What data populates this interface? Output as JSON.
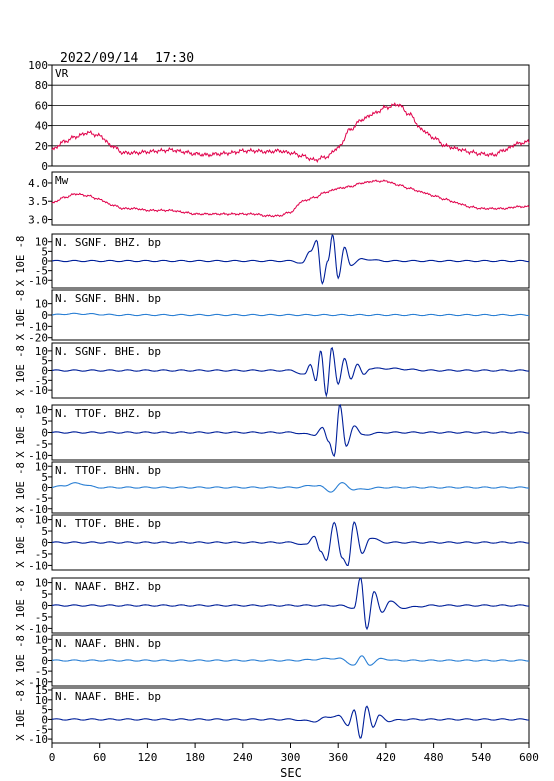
{
  "header": {
    "date": "2022/09/14",
    "time": "17:30"
  },
  "xaxis": {
    "label": "SEC",
    "ticks": [
      "0",
      "60",
      "120",
      "180",
      "240",
      "300",
      "360",
      "420",
      "480",
      "540",
      "600"
    ]
  },
  "colors": {
    "vr": "#e0004a",
    "wave_dark": "#00209a",
    "wave_light": "#2a7fd4",
    "axes": "#000000",
    "grid": "#000000"
  },
  "chart_data": [
    {
      "type": "line",
      "label": "VR",
      "ylim": [
        0,
        100
      ],
      "yticks": [
        "100",
        "80",
        "60",
        "40",
        "20",
        "0"
      ],
      "grid": true,
      "x": [
        0,
        15,
        30,
        45,
        60,
        75,
        90,
        105,
        120,
        135,
        150,
        165,
        180,
        195,
        210,
        225,
        240,
        255,
        270,
        285,
        300,
        315,
        330,
        345,
        360,
        375,
        390,
        405,
        420,
        435,
        450,
        465,
        480,
        495,
        510,
        525,
        540,
        555,
        570,
        585,
        600
      ],
      "values": [
        16,
        24,
        29,
        33,
        30,
        20,
        13,
        13,
        14,
        15,
        16,
        14,
        12,
        11,
        12,
        13,
        15,
        15,
        14,
        15,
        13,
        10,
        6,
        9,
        18,
        36,
        46,
        52,
        58,
        61,
        51,
        36,
        28,
        20,
        17,
        14,
        12,
        11,
        16,
        22,
        24
      ]
    },
    {
      "type": "line",
      "label": "Mw",
      "ylim": [
        2.85,
        4.3
      ],
      "yticks": [
        "4.0",
        "3.5",
        "3.0"
      ],
      "x": [
        0,
        15,
        30,
        45,
        60,
        75,
        90,
        105,
        120,
        135,
        150,
        165,
        180,
        195,
        210,
        225,
        240,
        255,
        270,
        285,
        300,
        315,
        330,
        345,
        360,
        375,
        390,
        405,
        420,
        435,
        450,
        465,
        480,
        495,
        510,
        525,
        540,
        555,
        570,
        585,
        600
      ],
      "values": [
        3.45,
        3.6,
        3.7,
        3.65,
        3.55,
        3.4,
        3.3,
        3.3,
        3.25,
        3.25,
        3.25,
        3.2,
        3.15,
        3.15,
        3.15,
        3.15,
        3.15,
        3.15,
        3.1,
        3.1,
        3.2,
        3.5,
        3.6,
        3.75,
        3.85,
        3.9,
        4.0,
        4.05,
        4.05,
        3.95,
        3.85,
        3.75,
        3.65,
        3.55,
        3.45,
        3.35,
        3.3,
        3.3,
        3.3,
        3.35,
        3.35
      ]
    },
    {
      "type": "line",
      "label": "N. SGNF. BHZ. bp",
      "unit": "X 10E -8",
      "yticks": [
        "10",
        "5",
        "0",
        "-5",
        "-10"
      ],
      "ylim": [
        -14,
        14
      ],
      "color": "dark",
      "x": [
        0,
        60,
        120,
        180,
        240,
        300,
        315,
        325,
        333,
        340,
        347,
        353,
        360,
        368,
        376,
        390,
        420,
        480,
        540,
        600
      ],
      "values": [
        0,
        0,
        0,
        0,
        0,
        0,
        -1,
        5,
        11,
        -12,
        0,
        14,
        -9,
        7,
        -2,
        1,
        0,
        0,
        0,
        0
      ]
    },
    {
      "type": "line",
      "label": "N. SGNF. BHN. bp",
      "unit": "X 10E -8",
      "yticks": [
        "10",
        "0",
        "-10",
        "-20"
      ],
      "ylim": [
        -22,
        22
      ],
      "color": "light",
      "x": [
        0,
        20,
        40,
        60,
        80,
        100,
        120,
        180,
        240,
        300,
        360,
        420,
        480,
        540,
        600
      ],
      "values": [
        0,
        1,
        1,
        0.5,
        0,
        0,
        0,
        0,
        0,
        0,
        0,
        0,
        0,
        0,
        0
      ]
    },
    {
      "type": "line",
      "label": "N. SGNF. BHE. bp",
      "unit": "X 10E -8",
      "yticks": [
        "10",
        "5",
        "0",
        "-5",
        "-10"
      ],
      "ylim": [
        -14,
        14
      ],
      "color": "dark",
      "x": [
        0,
        60,
        120,
        180,
        240,
        300,
        318,
        325,
        332,
        338,
        345,
        352,
        360,
        368,
        376,
        384,
        392,
        400,
        420,
        480,
        540,
        600
      ],
      "values": [
        0,
        0,
        0,
        0,
        0,
        0,
        -2,
        3,
        -5,
        10,
        -13,
        12,
        -7,
        6,
        -4,
        3,
        -2,
        1,
        1,
        0,
        0,
        0
      ]
    },
    {
      "type": "line",
      "label": "N. TTOF. BHZ. bp",
      "unit": "X 10E -8",
      "yticks": [
        "10",
        "5",
        "0",
        "-5",
        "-10"
      ],
      "ylim": [
        -12,
        12
      ],
      "color": "dark",
      "x": [
        0,
        60,
        120,
        180,
        240,
        300,
        330,
        340,
        348,
        355,
        362,
        370,
        380,
        390,
        420,
        480,
        540,
        600
      ],
      "values": [
        0,
        0,
        0,
        0,
        0,
        0,
        -1,
        2,
        -4,
        -10,
        12,
        -6,
        3,
        -1,
        0,
        0,
        0,
        0
      ]
    },
    {
      "type": "line",
      "label": "N. TTOF. BHN. bp",
      "unit": "X 10E -8",
      "yticks": [
        "10",
        "5",
        "0",
        "-5",
        "-10"
      ],
      "ylim": [
        -12,
        12
      ],
      "color": "light",
      "x": [
        0,
        15,
        30,
        60,
        120,
        180,
        240,
        300,
        335,
        350,
        365,
        380,
        420,
        480,
        540,
        600
      ],
      "values": [
        0,
        1,
        2,
        0,
        0,
        0,
        0,
        0,
        1,
        -2,
        2,
        -1,
        0,
        0,
        0,
        0
      ]
    },
    {
      "type": "line",
      "label": "N. TTOF. BHE. bp",
      "unit": "X 10E -8",
      "yticks": [
        "10",
        "5",
        "0",
        "-5",
        "-10"
      ],
      "ylim": [
        -12,
        12
      ],
      "color": "dark",
      "x": [
        0,
        60,
        120,
        180,
        240,
        300,
        320,
        330,
        338,
        345,
        355,
        365,
        372,
        380,
        390,
        400,
        420,
        480,
        540,
        600
      ],
      "values": [
        0,
        0,
        0,
        0,
        0,
        0,
        -1,
        3,
        -4,
        -8,
        9,
        -7,
        -10,
        9,
        -5,
        2,
        0,
        0,
        0,
        0
      ]
    },
    {
      "type": "line",
      "label": "N. NAAF. BHZ. bp",
      "unit": "X 10E -8",
      "yticks": [
        "10",
        "5",
        "0",
        "-5",
        "-10"
      ],
      "ylim": [
        -12,
        12
      ],
      "color": "dark",
      "x": [
        0,
        60,
        120,
        180,
        240,
        300,
        360,
        380,
        388,
        396,
        405,
        415,
        425,
        440,
        480,
        540,
        600
      ],
      "values": [
        0,
        0,
        0,
        0,
        0,
        0,
        0,
        -1,
        12,
        -10,
        6,
        -3,
        2,
        -1,
        0,
        0,
        0
      ]
    },
    {
      "type": "line",
      "label": "N. NAAF. BHN. bp",
      "unit": "X 10E -8",
      "yticks": [
        "10",
        "5",
        "0",
        "-5",
        "-10"
      ],
      "ylim": [
        -12,
        12
      ],
      "color": "light",
      "x": [
        0,
        60,
        120,
        180,
        240,
        300,
        360,
        380,
        390,
        400,
        415,
        430,
        480,
        540,
        600
      ],
      "values": [
        0,
        0,
        0,
        0,
        0,
        0,
        1,
        -2,
        2,
        -2,
        1,
        0,
        0,
        0,
        0
      ]
    },
    {
      "type": "line",
      "label": "N. NAAF. BHE. bp",
      "unit": "X 10E -8",
      "yticks": [
        "15",
        "10",
        "5",
        "0",
        "-5",
        "-10"
      ],
      "ylim": [
        -12,
        16
      ],
      "color": "dark",
      "x": [
        0,
        60,
        120,
        180,
        240,
        300,
        330,
        345,
        360,
        372,
        380,
        388,
        396,
        404,
        412,
        425,
        440,
        480,
        540,
        600
      ],
      "values": [
        0,
        0,
        0,
        0,
        0,
        0,
        -1,
        1,
        2,
        -3,
        5,
        -10,
        7,
        -4,
        2,
        -1,
        0,
        0,
        0,
        0
      ]
    }
  ]
}
